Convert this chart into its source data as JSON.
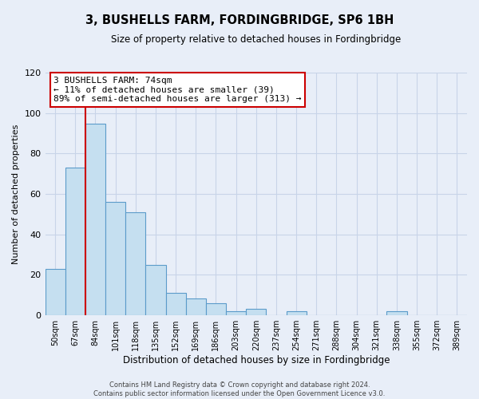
{
  "title": "3, BUSHELLS FARM, FORDINGBRIDGE, SP6 1BH",
  "subtitle": "Size of property relative to detached houses in Fordingbridge",
  "xlabel": "Distribution of detached houses by size in Fordingbridge",
  "ylabel": "Number of detached properties",
  "footer_line1": "Contains HM Land Registry data © Crown copyright and database right 2024.",
  "footer_line2": "Contains public sector information licensed under the Open Government Licence v3.0.",
  "bins": [
    "50sqm",
    "67sqm",
    "84sqm",
    "101sqm",
    "118sqm",
    "135sqm",
    "152sqm",
    "169sqm",
    "186sqm",
    "203sqm",
    "220sqm",
    "237sqm",
    "254sqm",
    "271sqm",
    "288sqm",
    "304sqm",
    "321sqm",
    "338sqm",
    "355sqm",
    "372sqm",
    "389sqm"
  ],
  "counts": [
    23,
    73,
    95,
    56,
    51,
    25,
    11,
    8,
    6,
    2,
    3,
    0,
    2,
    0,
    0,
    0,
    0,
    2,
    0,
    0,
    0
  ],
  "bar_color": "#c5dff0",
  "bar_edge_color": "#5b9bca",
  "vline_x": 1.5,
  "annotation_text": "3 BUSHELLS FARM: 74sqm\n← 11% of detached houses are smaller (39)\n89% of semi-detached houses are larger (313) →",
  "annotation_box_facecolor": "#ffffff",
  "annotation_box_edgecolor": "#cc0000",
  "vline_color": "#cc0000",
  "ylim": [
    0,
    120
  ],
  "yticks": [
    0,
    20,
    40,
    60,
    80,
    100,
    120
  ],
  "grid_color": "#c8d4e8",
  "background_color": "#e8eef8"
}
